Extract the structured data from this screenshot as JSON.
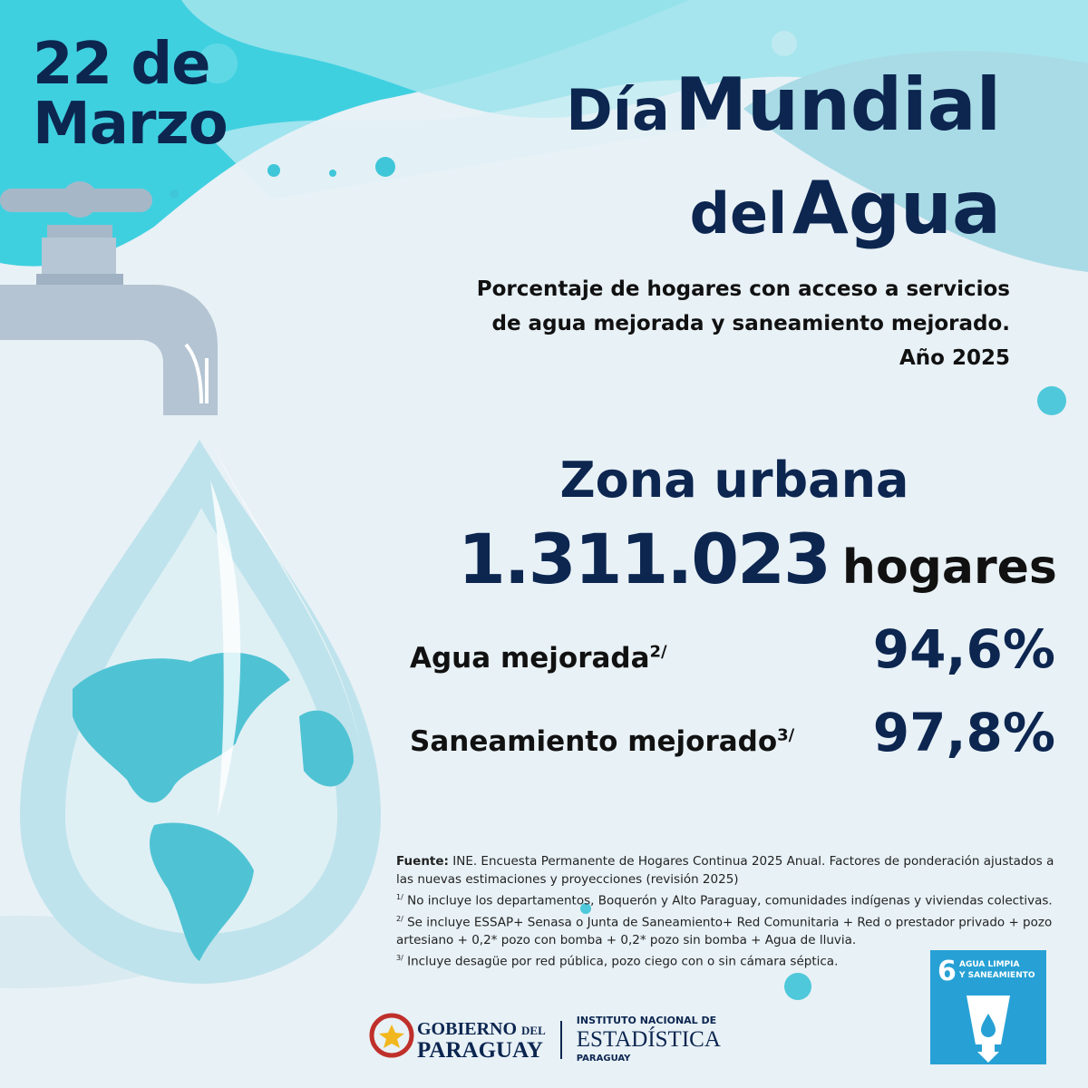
{
  "date": {
    "line1": "22 de",
    "line2": "Marzo"
  },
  "title": {
    "part1": "Día",
    "part2": "Mundial",
    "part3": "del",
    "part4": "Agua"
  },
  "subtitle": {
    "line1": "Porcentaje de hogares con acceso  a servicios",
    "line2": "de agua mejorada y saneamiento mejorado.",
    "line3": "Año 2025"
  },
  "zone": {
    "label": "Zona urbana",
    "households": "1.311.023",
    "households_unit": "hogares"
  },
  "indicators": [
    {
      "label": "Agua mejorada",
      "note": "2/",
      "value": "94,6%"
    },
    {
      "label": "Saneamiento mejorado",
      "note": "3/",
      "value": "97,8%"
    }
  ],
  "notes": {
    "source_label": "Fuente:",
    "source": "INE. Encuesta Permanente de Hogares Continua 2025 Anual. Factores de ponderación ajustados a las nuevas estimaciones y proyecciones (revisión 2025)",
    "n1_mark": "1/",
    "n1": "No incluye los departamentos, Boquerón y Alto Paraguay, comunidades indígenas y viviendas colectivas.",
    "n2_mark": "2/",
    "n2": "Se incluye ESSAP+ Senasa o Junta de Saneamiento+ Red Comunitaria + Red o prestador privado + pozo artesiano + 0,2* pozo con bomba + 0,2* pozo sin bomba + Agua de lluvia.",
    "n3_mark": "3/",
    "n3": "Incluye desagüe por red pública, pozo ciego con o sin cámara séptica."
  },
  "logos": {
    "gov1": "GOBIERNO",
    "gov_del": "DEL",
    "gov2": "PARAGUAY",
    "ine1": "INSTITUTO NACIONAL DE",
    "ine2": "ESTADÍSTICA",
    "ine3": "PARAGUAY"
  },
  "sdg": {
    "number": "6",
    "label1": "AGUA LIMPIA",
    "label2": "Y SANEAMIENTO",
    "color": "#27a1d5"
  },
  "colors": {
    "navy": "#0c2650",
    "cyan": "#3fc6d9",
    "background": "#e8f1f6"
  }
}
